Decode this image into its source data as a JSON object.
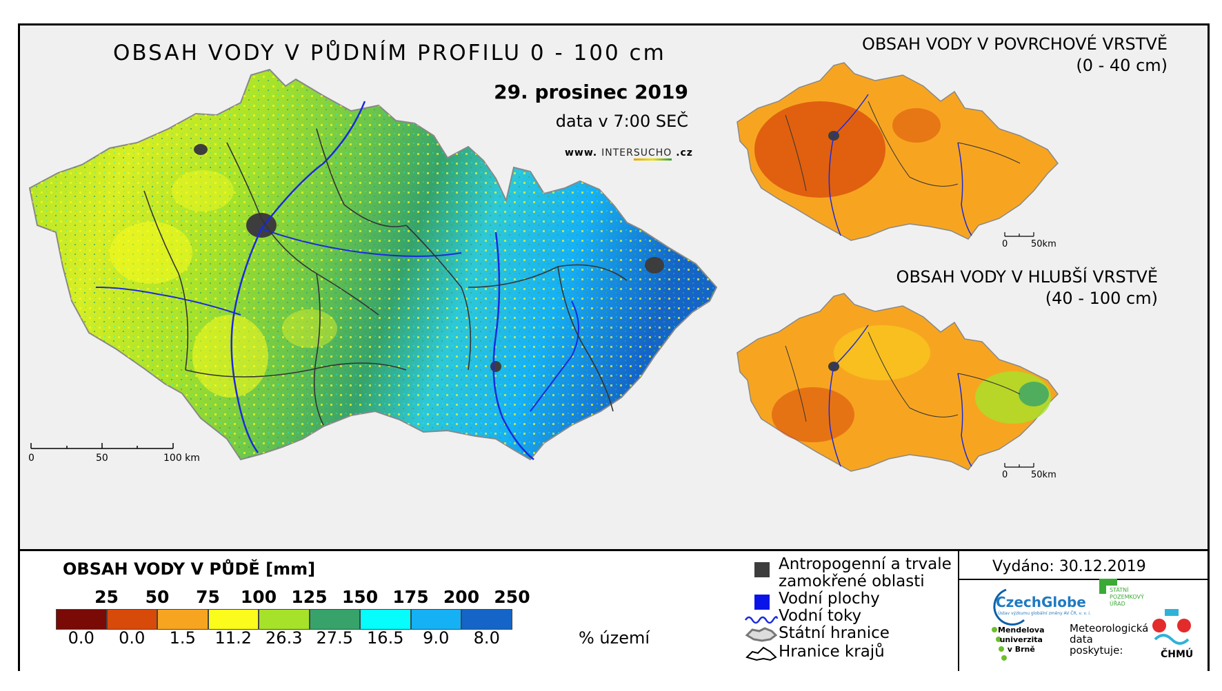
{
  "main_map": {
    "title": "OBSAH VODY V PŮDNÍM PROFILU 0 - 100 cm",
    "date": "29. prosinec 2019",
    "time": "data v 7:00 SEČ",
    "website": {
      "www": "www.",
      "inter": "INTER",
      "sucho": "SUCHO",
      "cz": ".cz"
    },
    "scale": [
      "0",
      "50",
      "100 km"
    ]
  },
  "top_map": {
    "title": "OBSAH VODY V POVRCHOVÉ VRSTVĚ",
    "depth": "(0 - 40 cm)",
    "scale": [
      "0",
      "50km"
    ]
  },
  "bottom_map": {
    "title": "OBSAH VODY V HLUBŠÍ VRSTVĚ",
    "depth": "(40 - 100 cm)",
    "scale": [
      "0",
      "50km"
    ]
  },
  "legend": {
    "title": "OBSAH VODY V PŮDĚ [mm]",
    "thresholds": [
      "25",
      "50",
      "75",
      "100",
      "125",
      "150",
      "175",
      "200",
      "250"
    ],
    "classes": [
      {
        "color": "#7a0a05",
        "percent": "0.0"
      },
      {
        "color": "#d84a0a",
        "percent": "0.0"
      },
      {
        "color": "#f7a521",
        "percent": "1.5"
      },
      {
        "color": "#fbfb1c",
        "percent": "11.2"
      },
      {
        "color": "#a6e22a",
        "percent": "26.3"
      },
      {
        "color": "#37a36b",
        "percent": "27.5"
      },
      {
        "color": "#07fcfc",
        "percent": "16.5"
      },
      {
        "color": "#16b0f5",
        "percent": "9.0"
      },
      {
        "color": "#1565c8",
        "percent": "8.0"
      }
    ],
    "unit": "% území"
  },
  "symbols": {
    "anthropogenic": "Antropogenní a trvale",
    "anthropogenic_2": "zamokřené oblasti",
    "water_bodies": "Vodní plochy",
    "rivers": "Vodní toky",
    "state_border": "Státní hranice",
    "region_border": "Hranice krajů"
  },
  "info": {
    "issued": "Vydáno: 30.12.2019",
    "czechglobe": "CzechGlobe",
    "czechglobe_sub": "Ústav výzkumu globální změny AV ČR, v. v. i.",
    "spu": [
      "STÁTNÍ",
      "POZEMKOVÝ",
      "ÚŘAD"
    ],
    "mendel": [
      "Mendelova",
      "univerzita",
      "v Brně"
    ],
    "meteo": [
      "Meteorologická",
      "data",
      "poskytuje:"
    ],
    "chmu": "ČHMÚ"
  },
  "colors": {
    "frame": "#000000",
    "background": "#f0f0f0",
    "river": "#1a2adc",
    "anthropogenic": "#3d3d3d",
    "water": "#0a14e8"
  }
}
